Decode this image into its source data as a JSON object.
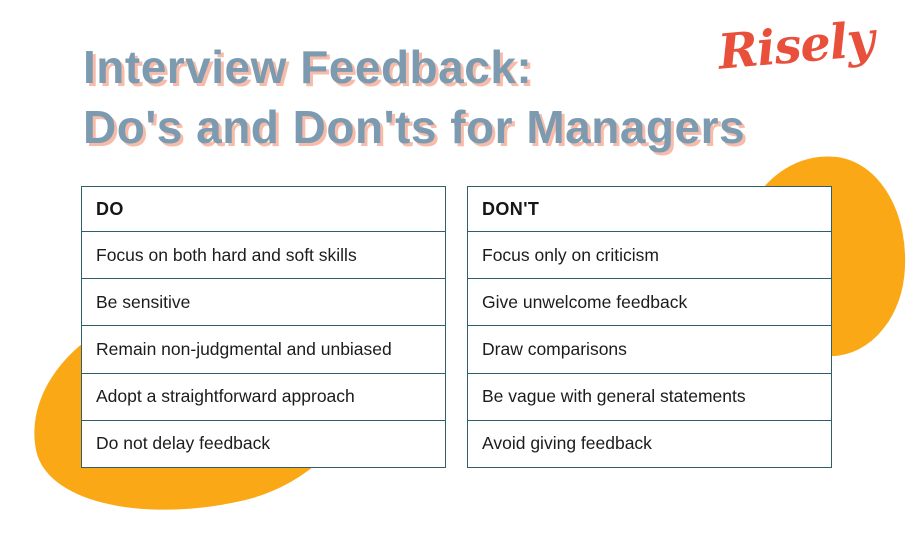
{
  "page": {
    "title_line1": "Interview Feedback:",
    "title_line2": "Do's and Don'ts for Managers",
    "logo_text": "Risely"
  },
  "colors": {
    "title_fill": "#7c9bb1",
    "title_shadow": "#f7bca9",
    "logo_red": "#e8503c",
    "blob_orange": "#fba817",
    "table_border": "#2e5f6b",
    "cell_text": "#1c1c1c"
  },
  "do_table": {
    "header": "DO",
    "rows": [
      "Focus on both hard and soft skills",
      "Be sensitive",
      "Remain non-judgmental and unbiased",
      "Adopt a straightforward approach",
      "Do not delay feedback"
    ]
  },
  "dont_table": {
    "header": "DON'T",
    "rows": [
      "Focus only on criticism",
      "Give unwelcome feedback",
      "Draw comparisons",
      "Be vague with general statements",
      "Avoid giving feedback"
    ]
  }
}
